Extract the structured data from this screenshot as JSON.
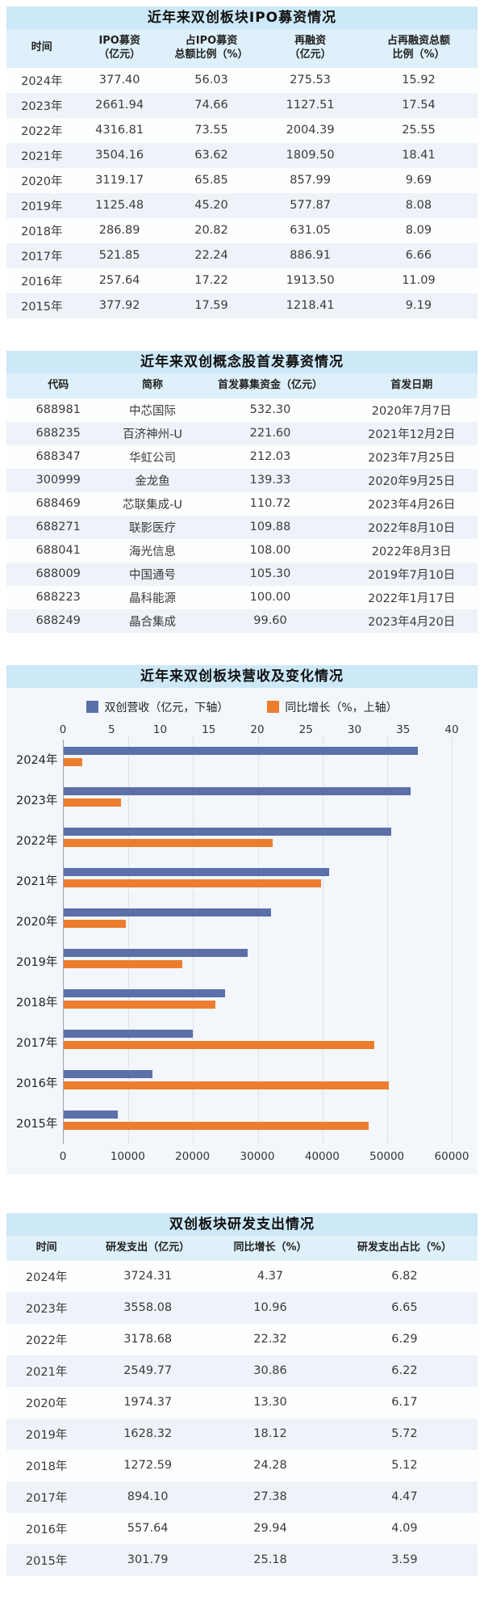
{
  "colors": {
    "title_bar_bg": "#cde8f6",
    "table_header_bg": "#def0f9",
    "row_alt_bg": "#edf3f8",
    "revenue_bar": "#5b6fa8",
    "growth_bar": "#ed7d2e"
  },
  "chart_data": [
    {
      "type": "table",
      "title": "近年来双创板块IPO募资情况",
      "columns": [
        "时间",
        "IPO募资\n（亿元）",
        "占IPO募资\n总额比例（%）",
        "再融资\n（亿元）",
        "占再融资总额\n比例（%）"
      ],
      "rows": [
        [
          "2024年",
          "377.40",
          "56.03",
          "275.53",
          "15.92"
        ],
        [
          "2023年",
          "2661.94",
          "74.66",
          "1127.51",
          "17.54"
        ],
        [
          "2022年",
          "4316.81",
          "73.55",
          "2004.39",
          "25.55"
        ],
        [
          "2021年",
          "3504.16",
          "63.62",
          "1809.50",
          "18.41"
        ],
        [
          "2020年",
          "3119.17",
          "65.85",
          "857.99",
          "9.69"
        ],
        [
          "2019年",
          "1125.48",
          "45.20",
          "577.87",
          "8.08"
        ],
        [
          "2018年",
          "286.89",
          "20.82",
          "631.05",
          "8.09"
        ],
        [
          "2017年",
          "521.85",
          "22.24",
          "886.91",
          "6.66"
        ],
        [
          "2016年",
          "257.64",
          "17.22",
          "1913.50",
          "11.09"
        ],
        [
          "2015年",
          "377.92",
          "17.59",
          "1218.41",
          "9.19"
        ]
      ]
    },
    {
      "type": "table",
      "title": "近年来双创概念股首发募资情况",
      "columns": [
        "代码",
        "简称",
        "首发募集资金（亿元）",
        "首发日期"
      ],
      "rows": [
        [
          "688981",
          "中芯国际",
          "532.30",
          "2020年7月7日"
        ],
        [
          "688235",
          "百济神州-U",
          "221.60",
          "2021年12月2日"
        ],
        [
          "688347",
          "华虹公司",
          "212.03",
          "2023年7月25日"
        ],
        [
          "300999",
          "金龙鱼",
          "139.33",
          "2020年9月25日"
        ],
        [
          "688469",
          "芯联集成-U",
          "110.72",
          "2023年4月26日"
        ],
        [
          "688271",
          "联影医疗",
          "109.88",
          "2022年8月10日"
        ],
        [
          "688041",
          "海光信息",
          "108.00",
          "2022年8月3日"
        ],
        [
          "688009",
          "中国通号",
          "105.30",
          "2019年7月10日"
        ],
        [
          "688223",
          "晶科能源",
          "100.00",
          "2022年1月17日"
        ],
        [
          "688249",
          "晶合集成",
          "99.60",
          "2023年4月20日"
        ]
      ]
    },
    {
      "type": "bar",
      "title": "近年来双创板块营收及变化情况",
      "orientation": "horizontal",
      "grid": true,
      "legend_position": "top",
      "categories": [
        "2024年",
        "2023年",
        "2022年",
        "2021年",
        "2020年",
        "2019年",
        "2018年",
        "2017年",
        "2016年",
        "2015年"
      ],
      "series": [
        {
          "name": "双创营收（亿元，下轴）",
          "axis": "bottom",
          "color": "#5b6fa8",
          "values": [
            54700,
            53600,
            50600,
            41000,
            32000,
            28400,
            25000,
            19900,
            13700,
            8400
          ]
        },
        {
          "name": "同比增长（%，上轴）",
          "axis": "top",
          "color": "#ed7d2e",
          "values": [
            1.9,
            5.9,
            21.5,
            26.5,
            6.4,
            12.2,
            15.6,
            32.0,
            33.5,
            31.4
          ]
        }
      ],
      "top_axis": {
        "min": 0,
        "max": 40,
        "step": 5,
        "ticks": [
          0,
          5,
          10,
          15,
          20,
          25,
          30,
          35,
          40
        ]
      },
      "bottom_axis": {
        "min": 0,
        "max": 60000,
        "step": 10000,
        "ticks": [
          0,
          10000,
          20000,
          30000,
          40000,
          50000,
          60000
        ]
      }
    },
    {
      "type": "table",
      "title": "双创板块研发支出情况",
      "columns": [
        "时间",
        "研发支出（亿元）",
        "同比增长（%）",
        "研发支出占比（%）"
      ],
      "rows": [
        [
          "2024年",
          "3724.31",
          "4.37",
          "6.82"
        ],
        [
          "2023年",
          "3558.08",
          "10.96",
          "6.65"
        ],
        [
          "2022年",
          "3178.68",
          "22.32",
          "6.29"
        ],
        [
          "2021年",
          "2549.77",
          "30.86",
          "6.22"
        ],
        [
          "2020年",
          "1974.37",
          "13.30",
          "6.17"
        ],
        [
          "2019年",
          "1628.32",
          "18.12",
          "5.72"
        ],
        [
          "2018年",
          "1272.59",
          "24.28",
          "5.12"
        ],
        [
          "2017年",
          "894.10",
          "27.38",
          "4.47"
        ],
        [
          "2016年",
          "557.64",
          "29.94",
          "4.09"
        ],
        [
          "2015年",
          "301.79",
          "25.18",
          "3.59"
        ]
      ]
    }
  ]
}
